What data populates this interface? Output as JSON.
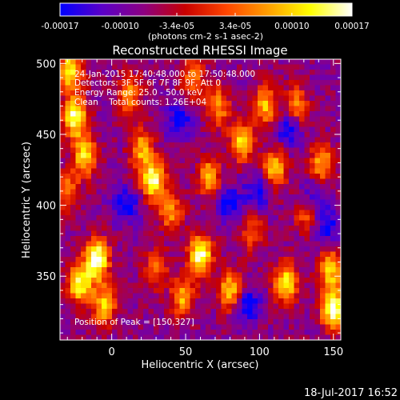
{
  "chart_data": {
    "type": "heatmap",
    "title": "Reconstructed RHESSI Image",
    "xlabel": "Heliocentric X (arcsec)",
    "ylabel": "Heliocentric Y (arcsec)",
    "xlim": [
      -35,
      155
    ],
    "ylim": [
      305,
      503
    ],
    "x_ticks": [
      0,
      50,
      100,
      150
    ],
    "y_ticks": [
      350,
      400,
      450,
      500
    ],
    "colorbar": {
      "range": [
        -0.00017,
        0.00017
      ],
      "tick_values": [
        -0.00017,
        -0.0001,
        -3.4e-05,
        3.4e-05,
        0.0001,
        0.00017
      ],
      "tick_labels": [
        "-0.00017",
        "-0.00010",
        "-3.4e-05",
        "3.4e-05",
        "0.00010",
        "0.00017"
      ],
      "unit_label": "(photons cm-2 s-1 asec-2)",
      "colors": [
        "#0000ff",
        "#5a00c8",
        "#8c0082",
        "#c80000",
        "#ff4600",
        "#ffa000",
        "#ffff00",
        "#ffffff"
      ]
    },
    "annotations": {
      "line1": "24-Jan-2015 17:40:48.000 to 17:50:48.000",
      "line2": "Detectors: 3F 5F 6F 7F 8F 9F, Att 0",
      "line3": "Energy Range: 25.0 - 50.0 keV",
      "line4": "Clean    Total counts: 1.26E+04",
      "peak": "Position of Peak = [150,327]"
    },
    "peak_position": [
      150,
      327
    ],
    "grid": false,
    "legend": "none",
    "blobs": [
      {
        "x": -25,
        "y": 462,
        "v": 0.9
      },
      {
        "x": -18,
        "y": 435,
        "v": 0.75
      },
      {
        "x": -30,
        "y": 410,
        "v": 0.5
      },
      {
        "x": -10,
        "y": 362,
        "v": 1.0
      },
      {
        "x": -22,
        "y": 345,
        "v": 0.85
      },
      {
        "x": -5,
        "y": 330,
        "v": 0.7
      },
      {
        "x": 12,
        "y": 478,
        "v": 0.55
      },
      {
        "x": 20,
        "y": 440,
        "v": 0.6
      },
      {
        "x": 28,
        "y": 418,
        "v": 0.9
      },
      {
        "x": 40,
        "y": 395,
        "v": 0.55
      },
      {
        "x": 30,
        "y": 355,
        "v": 0.45
      },
      {
        "x": 48,
        "y": 335,
        "v": 0.6
      },
      {
        "x": 60,
        "y": 365,
        "v": 0.95
      },
      {
        "x": 66,
        "y": 420,
        "v": 0.6
      },
      {
        "x": 72,
        "y": 470,
        "v": 0.55
      },
      {
        "x": 80,
        "y": 340,
        "v": 0.7
      },
      {
        "x": 88,
        "y": 445,
        "v": 0.7
      },
      {
        "x": 95,
        "y": 380,
        "v": 0.4
      },
      {
        "x": 104,
        "y": 470,
        "v": 0.65
      },
      {
        "x": 110,
        "y": 425,
        "v": 0.7
      },
      {
        "x": 118,
        "y": 345,
        "v": 0.8
      },
      {
        "x": 125,
        "y": 470,
        "v": 0.55
      },
      {
        "x": 132,
        "y": 395,
        "v": 0.5
      },
      {
        "x": 142,
        "y": 430,
        "v": 0.6
      },
      {
        "x": 148,
        "y": 355,
        "v": 0.7
      },
      {
        "x": 150,
        "y": 327,
        "v": 1.0
      },
      {
        "x": -28,
        "y": 495,
        "v": 0.8
      },
      {
        "x": 55,
        "y": 490,
        "v": 0.5
      }
    ],
    "cold_spots": [
      {
        "x": 120,
        "y": 455
      },
      {
        "x": 135,
        "y": 405
      },
      {
        "x": 145,
        "y": 385
      },
      {
        "x": 100,
        "y": 410
      },
      {
        "x": 80,
        "y": 400
      },
      {
        "x": 10,
        "y": 400
      },
      {
        "x": 45,
        "y": 460
      },
      {
        "x": 92,
        "y": 330
      }
    ]
  },
  "footer": {
    "date": "18-Jul-2017 16:52"
  }
}
